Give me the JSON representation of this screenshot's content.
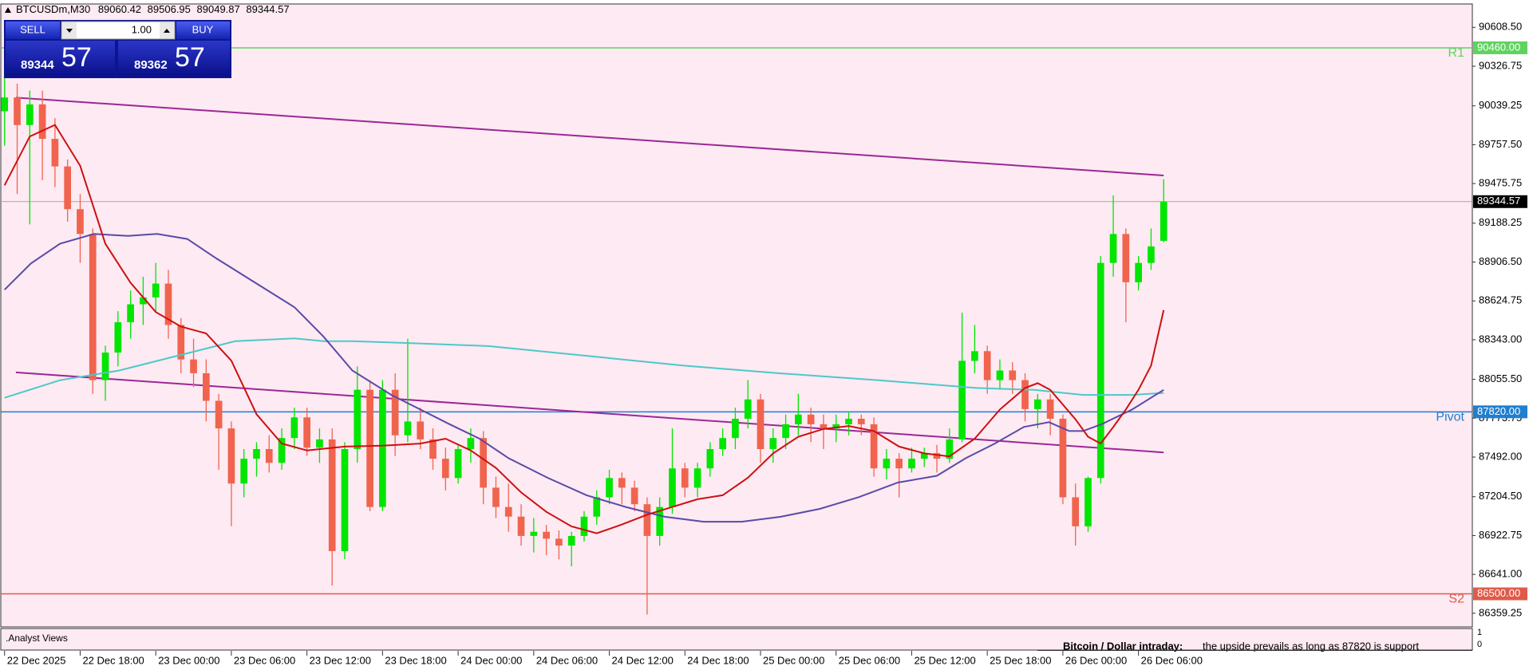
{
  "chart_data": {
    "type": "candlestick",
    "symbol": "BTCUSDm,M30",
    "xlim": [
      -0.3,
      116.5
    ],
    "xticks": [
      {
        "value": 0,
        "label": "22 Dec 2025"
      },
      {
        "value": 6,
        "label": "22 Dec 18:00"
      },
      {
        "value": 12,
        "label": "23 Dec 00:00"
      },
      {
        "value": 18,
        "label": "23 Dec 06:00"
      },
      {
        "value": 24,
        "label": "23 Dec 12:00"
      },
      {
        "value": 30,
        "label": "23 Dec 18:00"
      },
      {
        "value": 36,
        "label": "24 Dec 00:00"
      },
      {
        "value": 42,
        "label": "24 Dec 06:00"
      },
      {
        "value": 48,
        "label": "24 Dec 12:00"
      },
      {
        "value": 54,
        "label": "24 Dec 18:00"
      },
      {
        "value": 60,
        "label": "25 Dec 00:00"
      },
      {
        "value": 66,
        "label": "25 Dec 06:00"
      },
      {
        "value": 72,
        "label": "25 Dec 12:00"
      },
      {
        "value": 78,
        "label": "25 Dec 18:00"
      },
      {
        "value": 84,
        "label": "26 Dec 00:00"
      },
      {
        "value": 90,
        "label": "26 Dec 06:00"
      }
    ],
    "ylim": [
      86260,
      90778
    ],
    "yticks": [
      {
        "value": 90608.5,
        "label": "90608.50"
      },
      {
        "value": 90326.75,
        "label": "90326.75"
      },
      {
        "value": 90039.25,
        "label": "90039.25"
      },
      {
        "value": 89757.5,
        "label": "89757.50"
      },
      {
        "value": 89475.75,
        "label": "89475.75"
      },
      {
        "value": 89188.25,
        "label": "89188.25"
      },
      {
        "value": 88906.5,
        "label": "88906.50"
      },
      {
        "value": 88624.75,
        "label": "88624.75"
      },
      {
        "value": 88343,
        "label": "88343.00"
      },
      {
        "value": 88055.5,
        "label": "88055.50"
      },
      {
        "value": 87773.75,
        "label": "87773.75"
      },
      {
        "value": 87492,
        "label": "87492.00"
      },
      {
        "value": 87204.5,
        "label": "87204.50"
      },
      {
        "value": 86922.75,
        "label": "86922.75"
      },
      {
        "value": 86641,
        "label": "86641.00"
      },
      {
        "value": 86359.25,
        "label": "86359.25"
      }
    ],
    "up_color": "#00e600",
    "down_color": "#f0644e",
    "candles": {
      "x": [
        0,
        1,
        2,
        3,
        4,
        5,
        6,
        7,
        8,
        9,
        10,
        11,
        12,
        13,
        14,
        15,
        16,
        17,
        18,
        19,
        20,
        21,
        22,
        23,
        24,
        25,
        26,
        27,
        28,
        29,
        30,
        31,
        32,
        33,
        34,
        35,
        36,
        37,
        38,
        39,
        40,
        41,
        42,
        43,
        44,
        45,
        46,
        47,
        48,
        49,
        50,
        51,
        52,
        53,
        54,
        55,
        56,
        57,
        58,
        59,
        60,
        61,
        62,
        63,
        64,
        65,
        66,
        67,
        68,
        69,
        70,
        71,
        72,
        73,
        74,
        75,
        76,
        77,
        78,
        79,
        80,
        81,
        82,
        83,
        84,
        85,
        86,
        87,
        88,
        89,
        90,
        91,
        92
      ],
      "open": [
        90000,
        90100,
        89900,
        90050,
        89800,
        89600,
        89290,
        89110,
        88050,
        88250,
        88470,
        88600,
        88650,
        88750,
        88450,
        88200,
        88100,
        87900,
        87700,
        87300,
        87480,
        87550,
        87450,
        87630,
        87780,
        87560,
        87620,
        86810,
        87550,
        87980,
        87130,
        87980,
        87650,
        87750,
        87620,
        87480,
        87340,
        87550,
        87630,
        87270,
        87130,
        87060,
        86920,
        86950,
        86900,
        86850,
        86920,
        87060,
        87200,
        87340,
        87270,
        87150,
        86920,
        87130,
        87410,
        87270,
        87410,
        87550,
        87630,
        87770,
        87910,
        87550,
        87630,
        87730,
        87800,
        87730,
        87700,
        87730,
        87770,
        87730,
        87410,
        87480,
        87410,
        87480,
        87520,
        87480,
        87620,
        88190,
        88260,
        88050,
        88120,
        88050,
        87840,
        87910,
        87770,
        87200,
        86990,
        87340,
        88900,
        89110,
        88760,
        88900,
        89060.42
      ],
      "high": [
        90250,
        90200,
        90150,
        90150,
        89950,
        89650,
        89400,
        89150,
        88300,
        88550,
        88700,
        88800,
        88900,
        88850,
        88500,
        88350,
        88200,
        87950,
        87750,
        87550,
        87600,
        87650,
        87700,
        87850,
        87850,
        87700,
        87700,
        87600,
        88150,
        88050,
        88050,
        88100,
        88350,
        87850,
        87700,
        87560,
        87580,
        87700,
        87680,
        87350,
        87300,
        87150,
        87050,
        87000,
        86960,
        86950,
        87100,
        87250,
        87400,
        87380,
        87320,
        87200,
        87200,
        87700,
        87450,
        87450,
        87600,
        87700,
        87850,
        88050,
        87950,
        87700,
        87800,
        87950,
        87850,
        87800,
        87800,
        87820,
        87800,
        87780,
        87550,
        87520,
        87560,
        87560,
        87580,
        87700,
        88540,
        88450,
        88300,
        88200,
        88180,
        88100,
        87950,
        87950,
        87800,
        87300,
        87350,
        88950,
        89390,
        89150,
        88950,
        89150,
        89506.95
      ],
      "low": [
        89750,
        89400,
        89180,
        89500,
        89450,
        89200,
        88900,
        87950,
        87900,
        88150,
        88350,
        88450,
        88550,
        88350,
        88100,
        88000,
        87750,
        87400,
        86990,
        87200,
        87350,
        87380,
        87400,
        87550,
        87500,
        87450,
        86560,
        86750,
        87450,
        87100,
        87100,
        87500,
        87600,
        87550,
        87400,
        87250,
        87300,
        87450,
        87150,
        87050,
        86950,
        86850,
        86800,
        86780,
        86750,
        86700,
        86880,
        87000,
        87150,
        87150,
        87100,
        86350,
        86850,
        87080,
        87200,
        87200,
        87350,
        87500,
        87550,
        87700,
        87450,
        87450,
        87550,
        87650,
        87600,
        87550,
        87600,
        87650,
        87650,
        87350,
        87330,
        87200,
        87380,
        87420,
        87380,
        87450,
        87600,
        88100,
        87950,
        87980,
        87950,
        87750,
        87700,
        87650,
        87150,
        86850,
        86950,
        87300,
        88800,
        88470,
        88700,
        88850,
        89049.87
      ],
      "close": [
        90100,
        89900,
        90050,
        89800,
        89600,
        89290,
        89110,
        88050,
        88250,
        88470,
        88600,
        88650,
        88750,
        88450,
        88200,
        88100,
        87900,
        87700,
        87300,
        87480,
        87550,
        87450,
        87630,
        87780,
        87560,
        87620,
        86810,
        87550,
        87980,
        87130,
        87980,
        87650,
        87750,
        87620,
        87480,
        87340,
        87550,
        87630,
        87270,
        87130,
        87060,
        86920,
        86950,
        86900,
        86850,
        86920,
        87060,
        87200,
        87340,
        87270,
        87150,
        86920,
        87130,
        87410,
        87270,
        87410,
        87550,
        87630,
        87770,
        87910,
        87550,
        87630,
        87730,
        87800,
        87730,
        87700,
        87730,
        87770,
        87730,
        87410,
        87480,
        87410,
        87480,
        87520,
        87480,
        87620,
        88190,
        88260,
        88050,
        88120,
        88050,
        87840,
        87910,
        87770,
        87200,
        86990,
        87340,
        88900,
        89110,
        88760,
        88900,
        89020,
        89344.57
      ]
    },
    "price_label_color": "#000000",
    "moving_averages": [
      {
        "color": "#4ec8c8",
        "x": [
          0,
          4.4,
          9.1,
          13.7,
          18.3,
          23,
          25.3,
          27.6,
          32.3,
          38.4,
          46.2,
          53.9,
          61.6,
          69.4,
          77.1,
          81.7,
          85.6,
          89.5,
          92
        ],
        "values": [
          87922,
          88049,
          88120,
          88226,
          88332,
          88353,
          88332,
          88332,
          88318,
          88297,
          88226,
          88155,
          88099,
          88049,
          87993,
          87979,
          87943,
          87943,
          87957
        ]
      },
      {
        "color": "#5a4aa8",
        "x": [
          0,
          2.1,
          4.4,
          7.1,
          9.8,
          12.1,
          14.5,
          16.8,
          19.9,
          23,
          25.3,
          27.6,
          30.7,
          33,
          35.3,
          37.7,
          40,
          43.1,
          46.2,
          49.3,
          52.4,
          55.5,
          58.5,
          61.6,
          64.7,
          67.8,
          70.9,
          74,
          76.3,
          78.6,
          80.9,
          82.9,
          84.5,
          85.6,
          87.1,
          89.5,
          92
        ],
        "values": [
          88706,
          88897,
          89039,
          89110,
          89096,
          89110,
          89074,
          88933,
          88756,
          88579,
          88367,
          88120,
          87943,
          87837,
          87731,
          87625,
          87484,
          87342,
          87215,
          87130,
          87059,
          87023,
          87023,
          87059,
          87116,
          87201,
          87307,
          87356,
          87484,
          87590,
          87710,
          87745,
          87681,
          87681,
          87731,
          87837,
          87979
        ]
      },
      {
        "color": "#cc1010",
        "x": [
          0,
          2,
          4,
          6,
          8,
          10,
          12,
          14,
          16,
          18,
          20,
          22,
          24,
          27,
          30,
          33,
          35,
          37,
          39,
          41,
          43,
          45,
          47,
          49,
          51,
          53,
          55,
          57,
          59,
          61,
          63,
          65,
          67,
          69,
          71,
          73,
          75,
          77,
          79,
          81,
          82,
          83,
          85,
          86,
          87,
          88,
          89,
          90,
          91,
          92
        ],
        "values": [
          89463,
          89817,
          89901,
          89604,
          89039,
          88756,
          88544,
          88438,
          88389,
          88191,
          87802,
          87590,
          87540,
          87568,
          87575,
          87590,
          87625,
          87540,
          87413,
          87236,
          87095,
          86989,
          86939,
          87003,
          87074,
          87130,
          87186,
          87215,
          87342,
          87519,
          87639,
          87696,
          87717,
          87681,
          87568,
          87519,
          87497,
          87625,
          87837,
          87993,
          88028,
          87979,
          87766,
          87639,
          87590,
          87710,
          87837,
          87979,
          88155,
          88558
        ]
      }
    ],
    "trendlines": [
      {
        "color": "#9c2797",
        "x": [
          0.9,
          92
        ],
        "values": [
          90099,
          89534
        ]
      },
      {
        "color": "#9c2797",
        "x": [
          0.9,
          92
        ],
        "values": [
          88106,
          87526
        ]
      }
    ],
    "levels": [
      {
        "name": "R1",
        "value": 90460,
        "value_label": "90460.00",
        "color": "#5fd35f"
      },
      {
        "name": "Pivot",
        "value": 87820,
        "value_label": "87820.00",
        "color": "#1f7fd0"
      },
      {
        "name": "S2",
        "value": 86500,
        "value_label": "86500.00",
        "color": "#e05a4a"
      }
    ]
  },
  "trade_panel": {
    "sell": "SELL",
    "lot": "1.00",
    "buy": "BUY",
    "bid_big": "89344",
    "bid_small": "57",
    "ask_big": "89362",
    "ask_small": "57"
  },
  "analyst_views": {
    "title": ".Analyst Views",
    "heading": "Bitcoin / Dollar intraday:",
    "text": "the upside prevails as long as 87820 is support",
    "yticks": [
      "1",
      "0"
    ]
  }
}
